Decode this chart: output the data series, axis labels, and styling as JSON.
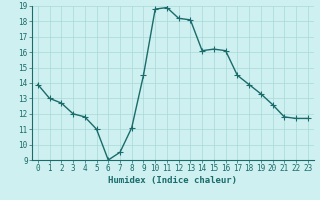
{
  "x": [
    0,
    1,
    2,
    3,
    4,
    5,
    6,
    7,
    8,
    9,
    10,
    11,
    12,
    13,
    14,
    15,
    16,
    17,
    18,
    19,
    20,
    21,
    22,
    23
  ],
  "y": [
    13.9,
    13.0,
    12.7,
    12.0,
    11.8,
    11.0,
    9.0,
    9.5,
    11.1,
    14.5,
    18.8,
    18.9,
    18.2,
    18.1,
    16.1,
    16.2,
    16.1,
    14.5,
    13.9,
    13.3,
    12.6,
    11.8,
    11.7,
    11.7
  ],
  "line_color": "#1a6b6b",
  "marker": "+",
  "markersize": 4,
  "linewidth": 1.0,
  "bg_color": "#cff0f0",
  "grid_color": "#a8d8d8",
  "xlabel": "Humidex (Indice chaleur)",
  "ylabel": "",
  "xlim": [
    -0.5,
    23.5
  ],
  "ylim": [
    9,
    19
  ],
  "xticks": [
    0,
    1,
    2,
    3,
    4,
    5,
    6,
    7,
    8,
    9,
    10,
    11,
    12,
    13,
    14,
    15,
    16,
    17,
    18,
    19,
    20,
    21,
    22,
    23
  ],
  "yticks": [
    9,
    10,
    11,
    12,
    13,
    14,
    15,
    16,
    17,
    18,
    19
  ],
  "tick_fontsize": 5.5,
  "xlabel_fontsize": 6.5
}
